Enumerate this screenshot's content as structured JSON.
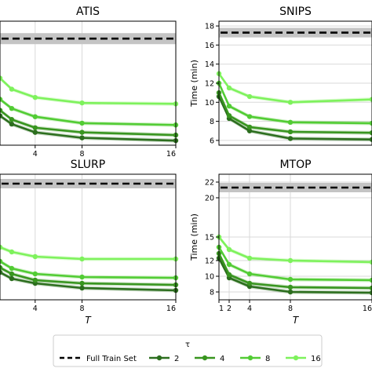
{
  "chart_data": [
    {
      "type": "line",
      "title": "ATIS",
      "xlabel": "",
      "ylabel": "",
      "x": [
        1,
        2,
        4,
        8,
        16
      ],
      "xticks": [
        4,
        8,
        16
      ],
      "yticks": [],
      "xlim": [
        1,
        16
      ],
      "ylim": [
        5.5,
        19
      ],
      "baseline": 17.1,
      "baseline_band": [
        16.5,
        17.7
      ],
      "series": [
        {
          "name": "2",
          "color": "#2c6e1e",
          "values": [
            8.7,
            7.8,
            6.9,
            6.3,
            6.0
          ]
        },
        {
          "name": "4",
          "color": "#38951f",
          "values": [
            9.3,
            8.3,
            7.4,
            6.9,
            6.6
          ]
        },
        {
          "name": "8",
          "color": "#52cc34",
          "values": [
            10.5,
            9.5,
            8.6,
            7.9,
            7.7
          ]
        },
        {
          "name": "16",
          "color": "#7ef25c",
          "values": [
            12.8,
            11.6,
            10.7,
            10.1,
            10.0
          ]
        }
      ]
    },
    {
      "type": "line",
      "title": "SNIPS",
      "xlabel": "",
      "ylabel": "Time (min)",
      "x": [
        1,
        2,
        4,
        8,
        16
      ],
      "xticks": [],
      "yticks": [
        6,
        8,
        10,
        12,
        14,
        16,
        18
      ],
      "xlim": [
        1,
        16
      ],
      "ylim": [
        5.5,
        18.5
      ],
      "baseline": 17.3,
      "baseline_band": [
        16.8,
        17.8
      ],
      "series": [
        {
          "name": "2",
          "color": "#2c6e1e",
          "values": [
            10.6,
            8.3,
            7.0,
            6.2,
            6.1
          ]
        },
        {
          "name": "4",
          "color": "#38951f",
          "values": [
            11.0,
            8.6,
            7.4,
            6.9,
            6.8
          ]
        },
        {
          "name": "8",
          "color": "#52cc34",
          "values": [
            12.0,
            9.6,
            8.5,
            7.9,
            7.8
          ]
        },
        {
          "name": "16",
          "color": "#7ef25c",
          "values": [
            13.0,
            11.5,
            10.6,
            10.0,
            10.3
          ]
        }
      ]
    },
    {
      "type": "line",
      "title": "SLURP",
      "xlabel": "T",
      "ylabel": "",
      "x": [
        1,
        2,
        4,
        8,
        16
      ],
      "xticks": [
        4,
        8,
        16
      ],
      "yticks": [],
      "xlim": [
        1,
        16
      ],
      "ylim": [
        6.5,
        22.5
      ],
      "baseline": 21.3,
      "baseline_band": [
        20.7,
        21.9
      ],
      "series": [
        {
          "name": "2",
          "color": "#2c6e1e",
          "values": [
            10.0,
            9.2,
            8.6,
            8.0,
            7.7
          ]
        },
        {
          "name": "4",
          "color": "#38951f",
          "values": [
            10.6,
            9.8,
            9.0,
            8.6,
            8.4
          ]
        },
        {
          "name": "8",
          "color": "#52cc34",
          "values": [
            11.4,
            10.5,
            9.8,
            9.4,
            9.3
          ]
        },
        {
          "name": "16",
          "color": "#7ef25c",
          "values": [
            13.2,
            12.6,
            12.0,
            11.7,
            11.7
          ]
        }
      ]
    },
    {
      "type": "line",
      "title": "MTOP",
      "xlabel": "T",
      "ylabel": "Time (min)",
      "x": [
        1,
        2,
        4,
        8,
        16
      ],
      "xticks": [
        1,
        2,
        4,
        8,
        16
      ],
      "yticks": [
        8,
        10,
        12,
        15,
        20,
        22
      ],
      "xlim": [
        1,
        16
      ],
      "ylim": [
        7,
        23
      ],
      "baseline": 21.3,
      "baseline_band": [
        20.7,
        21.9
      ],
      "series": [
        {
          "name": "2",
          "color": "#2c6e1e",
          "values": [
            12.3,
            9.8,
            8.7,
            8.0,
            7.9
          ]
        },
        {
          "name": "4",
          "color": "#38951f",
          "values": [
            12.9,
            10.2,
            9.1,
            8.6,
            8.5
          ]
        },
        {
          "name": "8",
          "color": "#52cc34",
          "values": [
            13.7,
            11.5,
            10.3,
            9.6,
            9.5
          ]
        },
        {
          "name": "16",
          "color": "#7ef25c",
          "values": [
            15.0,
            13.4,
            12.3,
            12.0,
            11.8
          ]
        }
      ]
    }
  ],
  "legend": {
    "title": "τ",
    "placement": "bottom-center",
    "baseline_label": "Full Train Set",
    "entries": [
      {
        "label": "2",
        "color": "#2c6e1e"
      },
      {
        "label": "4",
        "color": "#38951f"
      },
      {
        "label": "8",
        "color": "#52cc34"
      },
      {
        "label": "16",
        "color": "#7ef25c"
      }
    ]
  }
}
